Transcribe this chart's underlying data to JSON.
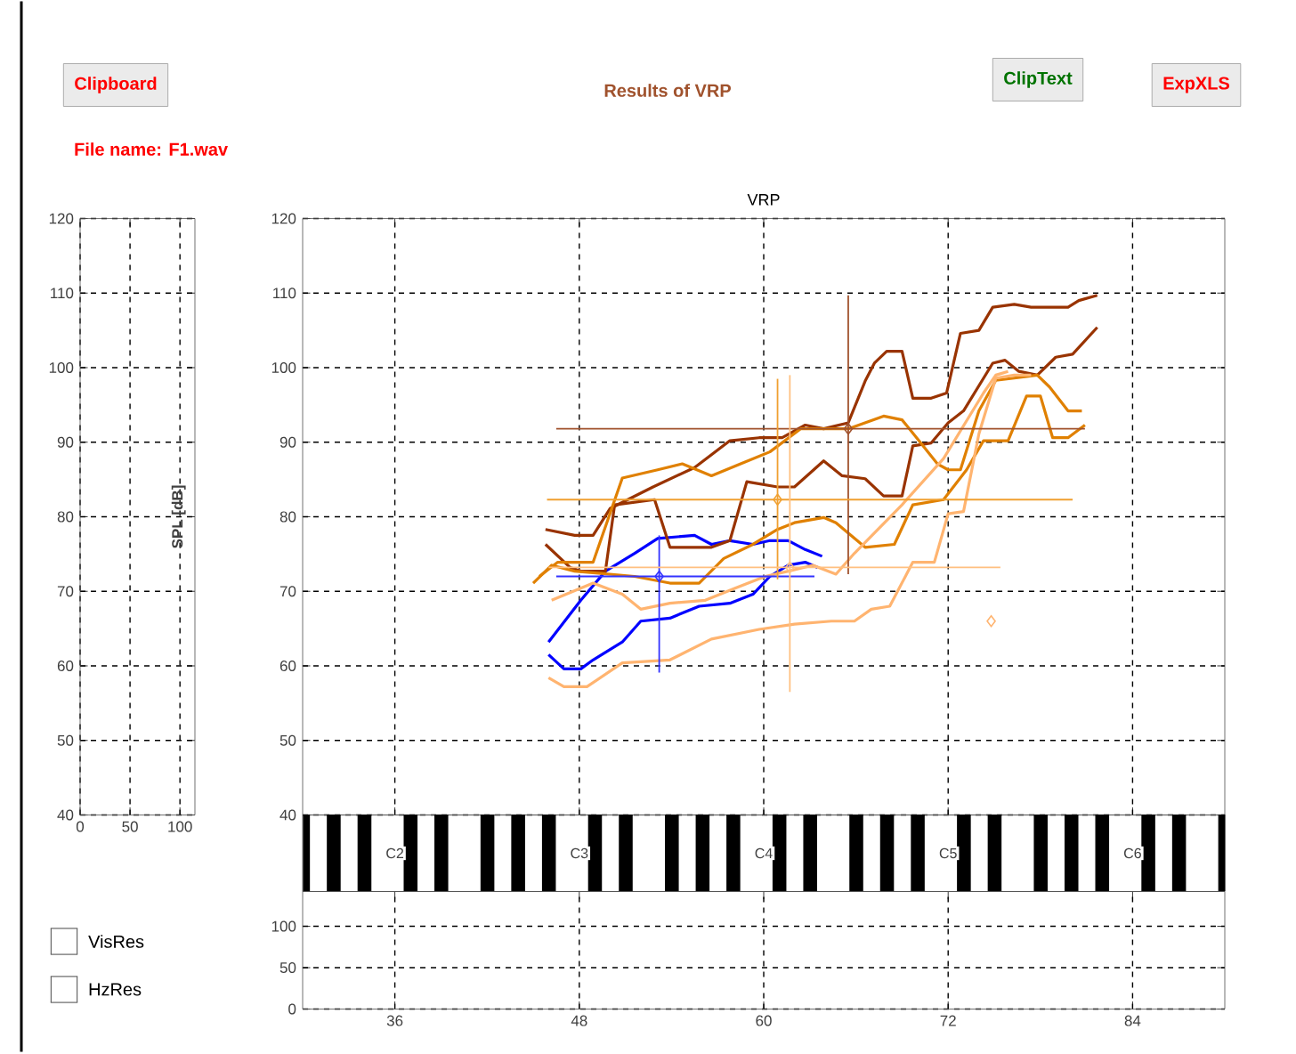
{
  "chart_data": [
    {
      "type": "other",
      "title": "Results of VRP",
      "subtitle": "File name: F1.wav",
      "annotations": [
        "Clipboard",
        "ClipText",
        "ExpXLS",
        "VisRes",
        "HzRes"
      ]
    },
    {
      "type": "line",
      "xlim": [
        0,
        115
      ],
      "xticks": [
        0,
        50,
        100
      ],
      "ylim": [
        40,
        120
      ],
      "yticks": [
        40,
        50,
        60,
        70,
        80,
        90,
        100,
        110,
        120
      ],
      "grid": true
    },
    {
      "type": "line",
      "title": "VRP",
      "ylabel": "SPL [dB]",
      "xlim": [
        30,
        90
      ],
      "xticks": [
        36,
        48,
        60,
        72,
        84
      ],
      "ylim": [
        40,
        120
      ],
      "yticks": [
        40,
        50,
        60,
        70,
        80,
        90,
        100,
        110,
        120
      ],
      "grid": true,
      "tick_labels": "y",
      "marker": "none",
      "series": [
        {
          "color": "#0000ff",
          "x": [
            46.0,
            48.1,
            49.7,
            51.6,
            53.1,
            55.5,
            56.6,
            57.8,
            59.3,
            60.4,
            61.6,
            62.7,
            63.8
          ],
          "values": [
            63.2,
            68.8,
            72.7,
            75.1,
            77.1,
            77.5,
            76.3,
            76.8,
            76.3,
            76.8,
            76.8,
            75.6,
            74.7
          ]
        },
        {
          "color": "#0000ff",
          "x": [
            46.0,
            47.0,
            48.1,
            48.9,
            50.8,
            52.0,
            53.9,
            55.8,
            57.8,
            59.3,
            60.4,
            61.6,
            62.7,
            63.5
          ],
          "values": [
            61.5,
            59.6,
            59.6,
            60.8,
            63.2,
            66.0,
            66.4,
            68.0,
            68.4,
            69.6,
            72.0,
            73.5,
            73.9,
            73.2
          ]
        },
        {
          "color": "#993300",
          "x": [
            45.8,
            47.7,
            48.9,
            50.0,
            52.8,
            55.5,
            57.8,
            59.7,
            61.2,
            62.7,
            63.9,
            65.5,
            66.6,
            67.2,
            68.0,
            69.0,
            69.7,
            70.9,
            71.9,
            72.8,
            74.0,
            74.9,
            76.3,
            77.4,
            79.8,
            80.5,
            81.7
          ],
          "values": [
            78.3,
            77.5,
            77.5,
            81.1,
            84.0,
            86.6,
            90.2,
            90.6,
            90.6,
            92.3,
            91.8,
            92.6,
            98.2,
            100.6,
            102.2,
            102.2,
            95.9,
            95.9,
            96.6,
            104.6,
            105.0,
            108.1,
            108.5,
            108.1,
            108.1,
            109.0,
            109.7
          ]
        },
        {
          "color": "#993300",
          "x": [
            45.8,
            47.4,
            48.1,
            49.7,
            50.3,
            52.9,
            53.9,
            56.6,
            57.8,
            58.9,
            60.9,
            62.0,
            63.9,
            65.1,
            66.6,
            67.8,
            69.0,
            69.7,
            70.9,
            72.0,
            73.0,
            74.9,
            75.7,
            76.6,
            77.8,
            79.0,
            80.1,
            81.7
          ],
          "values": [
            76.3,
            73.2,
            72.7,
            72.7,
            81.6,
            82.3,
            75.9,
            75.9,
            76.8,
            84.7,
            84.0,
            84.0,
            87.5,
            85.5,
            85.1,
            82.8,
            82.8,
            89.5,
            89.9,
            92.6,
            94.2,
            100.6,
            101.0,
            99.5,
            99.0,
            101.4,
            101.8,
            105.4
          ]
        },
        {
          "color": "#e08000",
          "x": [
            45.4,
            46.6,
            48.9,
            50.8,
            53.1,
            54.7,
            56.6,
            58.5,
            60.4,
            62.4,
            64.4,
            65.5,
            67.8,
            69.0,
            70.1,
            71.3,
            72.0,
            72.8,
            74.0,
            75.1,
            76.3,
            77.8,
            78.6,
            79.8,
            80.7
          ],
          "values": [
            72.0,
            73.9,
            73.9,
            85.2,
            86.3,
            87.1,
            85.5,
            87.1,
            88.7,
            91.8,
            91.8,
            91.8,
            93.5,
            93.0,
            90.2,
            87.1,
            86.3,
            86.3,
            94.2,
            98.3,
            98.6,
            99.0,
            97.4,
            94.2,
            94.2
          ]
        },
        {
          "color": "#e08000",
          "x": [
            45.0,
            46.2,
            47.7,
            51.6,
            53.9,
            55.8,
            57.4,
            59.3,
            60.9,
            62.0,
            63.9,
            64.7,
            66.6,
            68.5,
            69.7,
            71.7,
            73.2,
            74.3,
            75.9,
            77.1,
            78.0,
            78.8,
            79.8,
            80.9
          ],
          "values": [
            71.1,
            73.5,
            72.7,
            72.0,
            71.1,
            71.1,
            74.4,
            76.3,
            78.3,
            79.2,
            79.9,
            79.2,
            75.9,
            76.3,
            81.6,
            82.3,
            86.3,
            90.2,
            90.2,
            96.2,
            96.2,
            90.6,
            90.6,
            92.3
          ]
        },
        {
          "color": "#ffb470",
          "x": [
            46.2,
            48.9,
            50.8,
            52.0,
            53.9,
            56.2,
            58.1,
            60.1,
            61.6,
            63.2,
            64.7,
            65.9,
            69.0,
            71.7,
            74.3,
            75.1,
            75.9
          ],
          "values": [
            68.8,
            71.1,
            69.6,
            67.6,
            68.4,
            68.8,
            70.4,
            72.0,
            72.7,
            73.5,
            72.3,
            75.1,
            81.6,
            87.8,
            96.6,
            99.0,
            99.5
          ]
        },
        {
          "color": "#ffb470",
          "x": [
            46.0,
            47.0,
            48.5,
            50.8,
            53.9,
            56.6,
            59.7,
            62.0,
            64.4,
            65.9,
            67.0,
            68.2,
            69.7,
            71.1,
            72.0,
            73.0,
            74.0,
            75.1,
            76.3,
            77.4
          ],
          "values": [
            58.4,
            57.2,
            57.2,
            60.4,
            60.8,
            63.6,
            64.9,
            65.6,
            66.0,
            66.0,
            67.6,
            68.0,
            73.9,
            73.9,
            80.4,
            80.7,
            91.1,
            98.6,
            99.0,
            99.0
          ]
        },
        {
          "type": "scatter",
          "marker": "diamond",
          "color": "#3333ff",
          "x": [
            53.2
          ],
          "values": [
            72.0
          ],
          "errors": [
            [
              59.1,
              77.5
            ]
          ],
          "xerrors": [
            [
              46.5,
              63.3
            ]
          ]
        },
        {
          "type": "scatter",
          "marker": "diamond",
          "color": "#a0522d",
          "x": [
            65.5
          ],
          "values": [
            91.8
          ],
          "errors": [
            [
              72.3,
              109.7
            ]
          ],
          "xerrors": [
            [
              46.5,
              80.9
            ]
          ]
        },
        {
          "type": "scatter",
          "marker": "diamond",
          "color": "#f0a030",
          "x": [
            60.9
          ],
          "values": [
            82.3
          ],
          "errors": [
            [
              71.6,
              98.5
            ]
          ],
          "xerrors": [
            [
              45.9,
              80.1
            ]
          ]
        },
        {
          "type": "scatter",
          "marker": "diamond",
          "color": "#ffc080",
          "x": [
            61.7
          ],
          "values": [
            73.2
          ],
          "errors": [
            [
              56.5,
              99.0
            ]
          ],
          "xerrors": [
            [
              46.0,
              75.4
            ]
          ]
        },
        {
          "type": "scatter",
          "marker": "diamond",
          "color": "#ffb470",
          "x": [
            74.8
          ],
          "values": [
            66.0
          ]
        }
      ]
    },
    {
      "type": "line",
      "xlim": [
        30,
        90
      ],
      "xticks": [
        36,
        48,
        60,
        72,
        84
      ],
      "ylim": [
        0,
        142
      ],
      "yticks": [
        0,
        50,
        100
      ],
      "grid": true,
      "annotations": [
        "C2",
        "C3",
        "C4",
        "C5",
        "C6"
      ]
    }
  ]
}
